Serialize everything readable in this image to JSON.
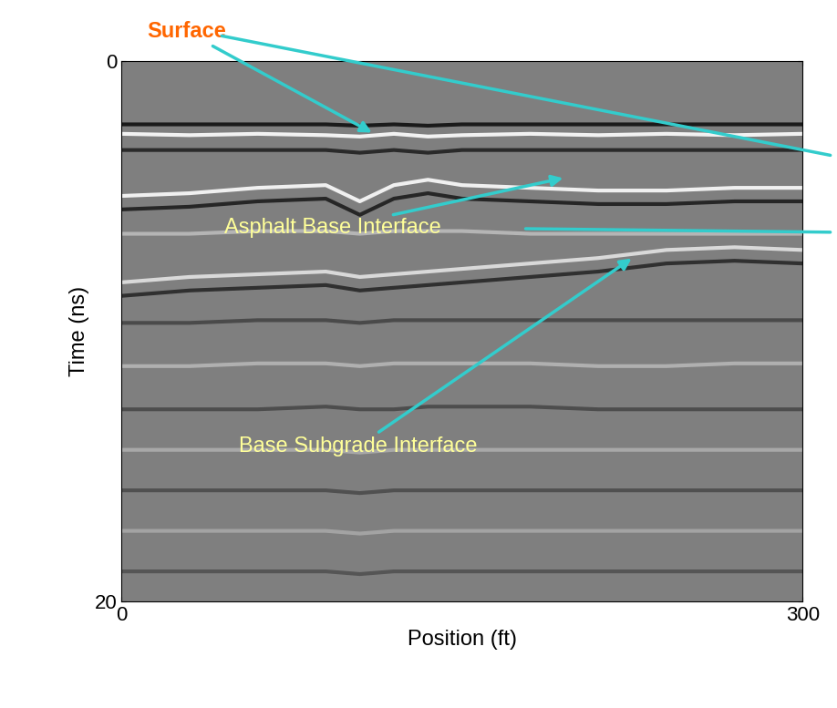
{
  "chart_data": {
    "type": "radargram",
    "xlabel": "Position (ft)",
    "ylabel": "Time (ns)",
    "xlim": [
      0,
      300
    ],
    "xticks": [
      0,
      300
    ],
    "ylim": [
      20,
      0
    ],
    "yticks": [
      0,
      20
    ],
    "annotations": [
      "Surface",
      "Asphalt Base Interface",
      "Base Subgrade Interface"
    ],
    "x": [
      0,
      30,
      60,
      90,
      105,
      120,
      135,
      150,
      180,
      210,
      240,
      270,
      300
    ],
    "series": [
      {
        "color": "#1a1a1a",
        "values": [
          2.35,
          2.35,
          2.35,
          2.35,
          2.4,
          2.35,
          2.4,
          2.35,
          2.35,
          2.35,
          2.35,
          2.35,
          2.35
        ]
      },
      {
        "color": "#f2f2f2",
        "values": [
          2.7,
          2.75,
          2.7,
          2.75,
          2.8,
          2.7,
          2.8,
          2.75,
          2.7,
          2.75,
          2.7,
          2.75,
          2.7
        ]
      },
      {
        "color": "#2a2a2a",
        "values": [
          3.3,
          3.3,
          3.3,
          3.3,
          3.4,
          3.3,
          3.4,
          3.3,
          3.3,
          3.3,
          3.3,
          3.3,
          3.3
        ]
      },
      {
        "color": "#f0f0f0",
        "values": [
          5.0,
          4.9,
          4.7,
          4.6,
          5.2,
          4.6,
          4.4,
          4.6,
          4.7,
          4.8,
          4.8,
          4.7,
          4.7
        ]
      },
      {
        "color": "#262626",
        "values": [
          5.5,
          5.4,
          5.2,
          5.1,
          5.7,
          5.1,
          4.9,
          5.1,
          5.2,
          5.3,
          5.3,
          5.2,
          5.2
        ]
      },
      {
        "color": "#b5b5b5",
        "values": [
          6.4,
          6.4,
          6.3,
          6.3,
          6.4,
          6.3,
          6.3,
          6.3,
          6.4,
          6.4,
          6.4,
          6.4,
          6.4
        ]
      },
      {
        "color": "#d9d9d9",
        "values": [
          8.2,
          8.0,
          7.9,
          7.8,
          8.0,
          7.9,
          7.8,
          7.7,
          7.5,
          7.3,
          7.0,
          6.9,
          7.0
        ]
      },
      {
        "color": "#303030",
        "values": [
          8.7,
          8.5,
          8.4,
          8.3,
          8.5,
          8.4,
          8.3,
          8.2,
          8.0,
          7.8,
          7.5,
          7.4,
          7.5
        ]
      },
      {
        "color": "#4a4a4a",
        "values": [
          9.7,
          9.7,
          9.6,
          9.6,
          9.7,
          9.6,
          9.6,
          9.6,
          9.6,
          9.6,
          9.6,
          9.6,
          9.6
        ]
      },
      {
        "color": "#b0b0b0",
        "values": [
          11.3,
          11.3,
          11.2,
          11.2,
          11.3,
          11.2,
          11.2,
          11.2,
          11.2,
          11.3,
          11.3,
          11.2,
          11.2
        ]
      },
      {
        "color": "#4d4d4d",
        "values": [
          12.9,
          12.9,
          12.9,
          12.8,
          12.9,
          12.9,
          12.8,
          12.8,
          12.8,
          12.9,
          12.9,
          12.9,
          12.9
        ]
      },
      {
        "color": "#a8a8a8",
        "values": [
          14.4,
          14.4,
          14.4,
          14.4,
          14.5,
          14.4,
          14.4,
          14.4,
          14.4,
          14.4,
          14.4,
          14.4,
          14.4
        ]
      },
      {
        "color": "#505050",
        "values": [
          15.9,
          15.9,
          15.9,
          15.9,
          16.0,
          15.9,
          15.9,
          15.9,
          15.9,
          15.9,
          15.9,
          15.9,
          15.9
        ]
      },
      {
        "color": "#a3a3a3",
        "values": [
          17.4,
          17.4,
          17.4,
          17.4,
          17.5,
          17.4,
          17.4,
          17.4,
          17.4,
          17.4,
          17.4,
          17.4,
          17.4
        ]
      },
      {
        "color": "#555555",
        "values": [
          18.9,
          18.9,
          18.9,
          18.9,
          19.0,
          18.9,
          18.9,
          18.9,
          18.9,
          18.9,
          18.9,
          18.9,
          18.9
        ]
      }
    ]
  }
}
